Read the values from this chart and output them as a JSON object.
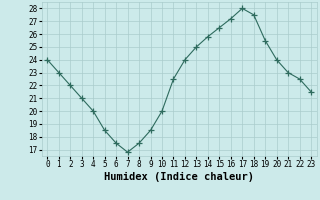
{
  "x": [
    0,
    1,
    2,
    3,
    4,
    5,
    6,
    7,
    8,
    9,
    10,
    11,
    12,
    13,
    14,
    15,
    16,
    17,
    18,
    19,
    20,
    21,
    22,
    23
  ],
  "y": [
    24,
    23,
    22,
    21,
    20,
    18.5,
    17.5,
    16.8,
    17.5,
    18.5,
    20,
    22.5,
    24,
    25,
    25.8,
    26.5,
    27.2,
    28,
    27.5,
    25.5,
    24,
    23,
    22.5,
    21.5
  ],
  "line_color": "#2e6b5e",
  "marker": "+",
  "marker_size": 4,
  "bg_color": "#cceaea",
  "grid_color": "#aacccc",
  "xlabel": "Humidex (Indice chaleur)",
  "xlim": [
    -0.5,
    23.5
  ],
  "ylim": [
    16.5,
    28.5
  ],
  "yticks": [
    17,
    18,
    19,
    20,
    21,
    22,
    23,
    24,
    25,
    26,
    27,
    28
  ],
  "xticks": [
    0,
    1,
    2,
    3,
    4,
    5,
    6,
    7,
    8,
    9,
    10,
    11,
    12,
    13,
    14,
    15,
    16,
    17,
    18,
    19,
    20,
    21,
    22,
    23
  ],
  "xtick_labels": [
    "0",
    "1",
    "2",
    "3",
    "4",
    "5",
    "6",
    "7",
    "8",
    "9",
    "10",
    "11",
    "12",
    "13",
    "14",
    "15",
    "16",
    "17",
    "18",
    "19",
    "20",
    "21",
    "22",
    "23"
  ],
  "tick_fontsize": 5.5,
  "xlabel_fontsize": 7.5
}
